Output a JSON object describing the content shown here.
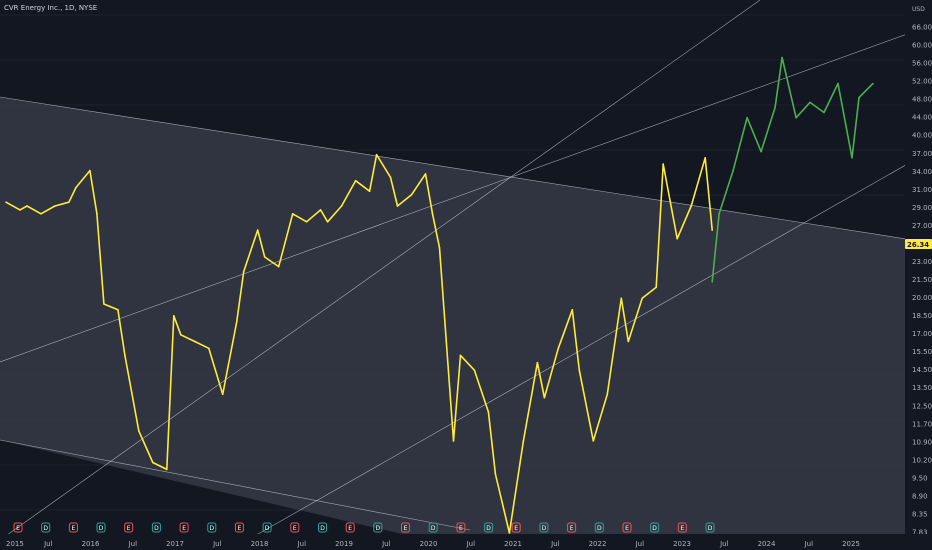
{
  "header": {
    "title": "CVR Energy Inc., 1D, NYSE"
  },
  "axis": {
    "currency": "USD"
  },
  "last_price": "26.34",
  "colors": {
    "background": "#131722",
    "channel_fill": "#363a45",
    "channel_line": "#d1d4dc",
    "history_line": "#ffeb3b",
    "projection_line": "#4caf50",
    "last_price_bg": "#ffeb3b",
    "dividend_badge": "#26a69a",
    "earnings_badge": "#ef5350"
  },
  "chart_data": {
    "type": "line",
    "title": "CVR Energy Inc., 1D, NYSE",
    "xlabel": "",
    "ylabel": "",
    "y_scale": "log",
    "grid": true,
    "ylim": [
      7.6,
      77
    ],
    "y_ticks": [
      "66.00",
      "60.00",
      "56.00",
      "52.00",
      "48.00",
      "44.00",
      "40.00",
      "37.00",
      "34.00",
      "31.00",
      "29.00",
      "27.00",
      "25.00",
      "23.00",
      "21.50",
      "20.00",
      "18.50",
      "17.00",
      "15.50",
      "14.50",
      "13.50",
      "12.50",
      "11.70",
      "10.90",
      "10.20",
      "9.50",
      "8.90",
      "8.35",
      "7.83"
    ],
    "x_ticks": [
      "2015",
      "Jul",
      "2016",
      "Jul",
      "2017",
      "Jul",
      "2018",
      "Jul",
      "2019",
      "Jul",
      "2020",
      "Jul",
      "2021",
      "Jul",
      "2022",
      "Jul",
      "2023",
      "Jul",
      "2024",
      "Jul",
      "2025"
    ],
    "series": [
      {
        "x": [
          "2015-01",
          "2015-03",
          "2015-04",
          "2015-06",
          "2015-08",
          "2015-10",
          "2015-11",
          "2016-01",
          "2016-02",
          "2016-03",
          "2016-05",
          "2016-06",
          "2016-08",
          "2016-10",
          "2016-12",
          "2017-01",
          "2017-02",
          "2017-04",
          "2017-06",
          "2017-08",
          "2017-10",
          "2017-11",
          "2018-01",
          "2018-02",
          "2018-04",
          "2018-06",
          "2018-08",
          "2018-10",
          "2018-11",
          "2019-01",
          "2019-03",
          "2019-05",
          "2019-06",
          "2019-08",
          "2019-09",
          "2019-11",
          "2020-01",
          "2020-02",
          "2020-03",
          "2020-05",
          "2020-06",
          "2020-08",
          "2020-10",
          "2020-11",
          "2021-01",
          "2021-03",
          "2021-05",
          "2021-06",
          "2021-08",
          "2021-10",
          "2021-11",
          "2022-01",
          "2022-03",
          "2022-05",
          "2022-06",
          "2022-08",
          "2022-10",
          "2022-11",
          "2023-01",
          "2023-03",
          "2023-05",
          "2023-06"
        ],
        "values": [
          31.5,
          30.5,
          31,
          30,
          31,
          31.5,
          33.5,
          36,
          30,
          20.5,
          20,
          16.5,
          12,
          10.5,
          10.2,
          19.5,
          18,
          17.5,
          17,
          14,
          19,
          23.5,
          28,
          25,
          24,
          30,
          29,
          30.5,
          29,
          31,
          34.5,
          33,
          38.5,
          35,
          31,
          32.5,
          35.5,
          30,
          26,
          11.5,
          16.5,
          15.5,
          13,
          10,
          7.8,
          11.5,
          16,
          13.8,
          17,
          20,
          15.5,
          11.5,
          14,
          21,
          17.5,
          21,
          22,
          37,
          27,
          31,
          38,
          28
        ]
      },
      {
        "x": [
          "2023-06",
          "2023-07",
          "2023-09",
          "2023-11",
          "2024-01",
          "2024-03",
          "2024-04",
          "2024-06",
          "2024-08",
          "2024-10",
          "2024-12",
          "2025-02",
          "2025-03",
          "2025-05"
        ],
        "values": [
          22.5,
          30,
          36,
          45,
          39,
          47,
          58,
          45,
          48,
          46,
          52,
          38,
          49,
          52
        ]
      }
    ],
    "annotations": {
      "dividend_badges": 13,
      "earnings_badges": 13
    }
  }
}
